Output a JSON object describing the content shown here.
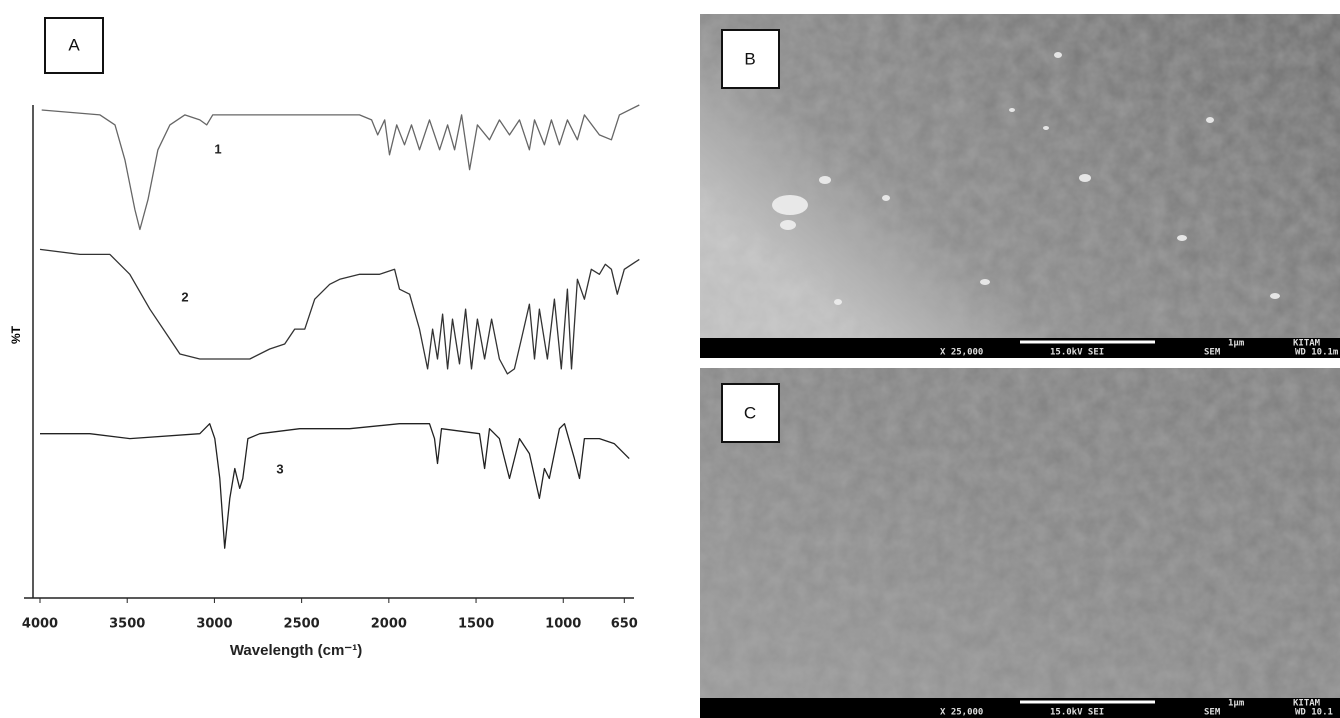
{
  "chart_data": {
    "type": "line",
    "panel_label": "A",
    "x_label": "Wavelength (cm⁻¹)",
    "y_label": "%T",
    "xlim": [
      4000,
      560
    ],
    "ylim": [
      0,
      100
    ],
    "xticks": [
      4000,
      3500,
      3000,
      2500,
      2000,
      1500,
      1000,
      650
    ],
    "series": [
      {
        "name": "1",
        "color": "#666666",
        "x": [
          3990,
          3656,
          3570,
          3513,
          3456,
          3427,
          3381,
          3324,
          3255,
          3170,
          3084,
          3044,
          3010,
          2855,
          2511,
          2168,
          2099,
          2064,
          2024,
          1996,
          1955,
          1910,
          1870,
          1824,
          1767,
          1709,
          1663,
          1623,
          1583,
          1537,
          1492,
          1423,
          1366,
          1308,
          1251,
          1194,
          1165,
          1108,
          1068,
          1022,
          976,
          919,
          879,
          793,
          724,
          678,
          564
        ],
        "values": [
          98,
          97,
          95,
          88,
          78,
          74,
          80,
          90,
          95,
          97,
          96,
          95,
          97,
          97,
          97,
          97,
          96,
          93,
          96,
          89,
          95,
          91,
          95,
          90,
          96,
          90,
          95,
          90,
          97,
          86,
          95,
          92,
          96,
          93,
          96,
          90,
          96,
          91,
          96,
          91,
          96,
          92,
          97,
          93,
          92,
          97,
          99
        ]
      },
      {
        "name": "2",
        "color": "#333333",
        "x": [
          4000,
          3771,
          3599,
          3485,
          3370,
          3255,
          3198,
          3084,
          2797,
          2683,
          2597,
          2540,
          2482,
          2425,
          2339,
          2282,
          2167,
          2053,
          1967,
          1939,
          1881,
          1824,
          1778,
          1749,
          1721,
          1692,
          1663,
          1635,
          1595,
          1560,
          1526,
          1492,
          1451,
          1411,
          1366,
          1320,
          1280,
          1240,
          1194,
          1165,
          1137,
          1091,
          1051,
          1011,
          976,
          953,
          919,
          879,
          839,
          793,
          759,
          724,
          690,
          650,
          564
        ],
        "values": [
          70,
          69,
          69,
          65,
          58,
          52,
          49,
          48,
          48,
          50,
          51,
          54,
          54,
          60,
          63,
          64,
          65,
          65,
          66,
          62,
          61,
          54,
          46,
          54,
          48,
          57,
          46,
          56,
          47,
          58,
          46,
          56,
          48,
          56,
          48,
          45,
          46,
          52,
          59,
          48,
          58,
          48,
          60,
          46,
          62,
          46,
          64,
          60,
          66,
          65,
          67,
          66,
          61,
          66,
          68
        ]
      },
      {
        "name": "3",
        "color": "#222222",
        "x": [
          4000,
          3714,
          3485,
          3084,
          3027,
          2998,
          2969,
          2941,
          2912,
          2883,
          2855,
          2837,
          2808,
          2740,
          2511,
          2225,
          1939,
          1767,
          1738,
          1721,
          1698,
          1480,
          1451,
          1423,
          1366,
          1308,
          1251,
          1194,
          1137,
          1108,
          1080,
          1022,
          993,
          936,
          907,
          879,
          793,
          708,
          622
        ],
        "values": [
          33,
          33,
          32,
          33,
          35,
          32,
          24,
          10,
          20,
          26,
          22,
          24,
          32,
          33,
          34,
          34,
          35,
          35,
          32,
          27,
          34,
          33,
          26,
          34,
          32,
          24,
          32,
          29,
          20,
          26,
          24,
          34,
          35,
          28,
          24,
          32,
          32,
          31,
          28
        ]
      }
    ]
  },
  "panels": [
    {
      "label": "B",
      "magnification": "X 25,000",
      "voltage": "15.0kV SEI",
      "scale": "1μm",
      "lab": "KITAM",
      "mode": "SEM",
      "wd": "WD 10.1m"
    },
    {
      "label": "C",
      "magnification": "X 25,000",
      "voltage": "15.0kV SEI",
      "scale": "1μm",
      "lab": "KITAM",
      "mode": "SEM",
      "wd": "WD 10.1"
    }
  ]
}
